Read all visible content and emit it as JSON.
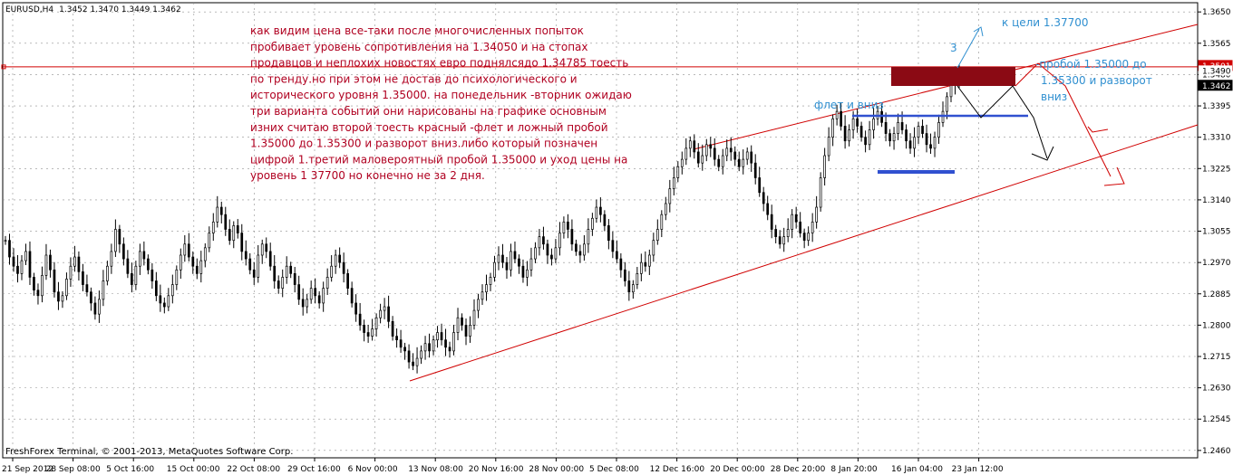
{
  "header": {
    "symbol": "EURUSD,H4",
    "ohlc": "1.3452 1.3470 1.3449 1.3462"
  },
  "footer": {
    "copyright": "FreshForex Terminal, © 2001-2013, MetaQuotes Software Corp."
  },
  "annotations": {
    "main_text": [
      "как видим цена все-таки после многочисленных попыток",
      "пробивает уровень сопротивления на 1.34050 и на стопах",
      "продавцов и неплохих новостях евро поднялсядо 1.34785 тоесть",
      "по тренду.но при этом не достав до психологического  и",
      "исторического уровня 1.35000. на понедельник -вторник ожидаю",
      "три варианта событий они нарисованы на графике основным",
      "изних считаю второй тоесть красный -флет и ложный пробой",
      "1.35000 до 1.35300 и разворот вниз.либо который позначен",
      "цифрой 1.третий маловероятный пробой 1.35000 и уход цены на",
      "уровень 1 37700 но конечно не за 2 дня."
    ],
    "target_label": "к цели 1.37700",
    "flat_label": "флет и вниз",
    "breakout_label": [
      "-пробой 1.35000 до",
      "1.35300 и разворот",
      "вниз"
    ],
    "number_three": "3"
  },
  "colors": {
    "candle": "#000000",
    "trend_line": "#d00000",
    "annotation_red": "#b00020",
    "annotation_blue": "#2f8fd0",
    "support_line": "#3050d0",
    "resistance_box": "#8b0a14",
    "grid": "#909090"
  },
  "chart_data": {
    "type": "candlestick",
    "symbol": "EURUSD",
    "timeframe": "H4",
    "y_ticks": [
      "1.3650",
      "1.3565",
      "1.3480",
      "1.3395",
      "1.3310",
      "1.3225",
      "1.3140",
      "1.3055",
      "1.2970",
      "1.2885",
      "1.2800",
      "1.2715",
      "1.2630",
      "1.2545",
      "1.2460"
    ],
    "ylim": [
      1.244,
      1.3675
    ],
    "x_ticks": [
      "21 Sep 2012",
      "28 Sep 08:00",
      "5 Oct 16:00",
      "15 Oct 00:00",
      "22 Oct 08:00",
      "29 Oct 16:00",
      "6 Nov 00:00",
      "13 Nov 08:00",
      "20 Nov 16:00",
      "28 Nov 00:00",
      "5 Dec 08:00",
      "12 Dec 16:00",
      "20 Dec 00:00",
      "28 Dec 20:00",
      "8 Jan 20:00",
      "16 Jan 04:00",
      "23 Jan 12:00"
    ],
    "price_marks": [
      {
        "label": "1.3501",
        "value": 1.3501,
        "style": "red"
      },
      {
        "label": "1.3490",
        "value": 1.349,
        "style": "plain"
      },
      {
        "label": "1.3462",
        "value": 1.3462,
        "style": "dark"
      }
    ],
    "horizontal_line": 1.3501,
    "closes": [
      1.303,
      1.2985,
      1.296,
      1.294,
      1.2975,
      1.3,
      1.293,
      1.2895,
      1.288,
      1.2935,
      1.299,
      1.295,
      1.289,
      1.2865,
      1.288,
      1.2925,
      1.296,
      1.2985,
      1.2945,
      1.291,
      1.289,
      1.286,
      1.283,
      1.287,
      1.292,
      1.296,
      1.3,
      1.306,
      1.302,
      1.298,
      1.294,
      1.291,
      1.296,
      1.3,
      1.298,
      1.295,
      1.292,
      1.288,
      1.286,
      1.285,
      1.288,
      1.291,
      1.295,
      1.299,
      1.302,
      1.2985,
      1.296,
      1.294,
      1.2975,
      1.301,
      1.305,
      1.308,
      1.312,
      1.31,
      1.306,
      1.303,
      1.307,
      1.305,
      1.3,
      1.298,
      1.295,
      1.293,
      1.299,
      1.302,
      1.3,
      1.296,
      1.292,
      1.29,
      1.293,
      1.296,
      1.294,
      1.291,
      1.287,
      1.285,
      1.287,
      1.29,
      1.288,
      1.286,
      1.29,
      1.293,
      1.296,
      1.299,
      1.297,
      1.294,
      1.29,
      1.286,
      1.283,
      1.28,
      1.278,
      1.277,
      1.279,
      1.282,
      1.284,
      1.285,
      1.281,
      1.277,
      1.276,
      1.274,
      1.273,
      1.27,
      1.269,
      1.271,
      1.273,
      1.275,
      1.273,
      1.276,
      1.278,
      1.276,
      1.274,
      1.273,
      1.278,
      1.282,
      1.28,
      1.277,
      1.28,
      1.284,
      1.287,
      1.289,
      1.291,
      1.293,
      1.297,
      1.299,
      1.297,
      1.295,
      1.3,
      1.298,
      1.296,
      1.293,
      1.295,
      1.298,
      1.301,
      1.304,
      1.302,
      1.299,
      1.298,
      1.301,
      1.305,
      1.308,
      1.306,
      1.302,
      1.3,
      1.299,
      1.302,
      1.306,
      1.309,
      1.312,
      1.31,
      1.307,
      1.303,
      1.3,
      1.298,
      1.295,
      1.292,
      1.289,
      1.291,
      1.294,
      1.297,
      1.296,
      1.299,
      1.303,
      1.306,
      1.31,
      1.313,
      1.317,
      1.32,
      1.323,
      1.325,
      1.328,
      1.33,
      1.327,
      1.324,
      1.326,
      1.329,
      1.328,
      1.325,
      1.323,
      1.326,
      1.328,
      1.327,
      1.325,
      1.323,
      1.325,
      1.327,
      1.324,
      1.32,
      1.316,
      1.313,
      1.31,
      1.306,
      1.304,
      1.302,
      1.304,
      1.306,
      1.31,
      1.308,
      1.305,
      1.303,
      1.305,
      1.308,
      1.312,
      1.32,
      1.326,
      1.331,
      1.336,
      1.338,
      1.334,
      1.33,
      1.333,
      1.336,
      1.334,
      1.331,
      1.329,
      1.333,
      1.336,
      1.338,
      1.335,
      1.332,
      1.33,
      1.332,
      1.335,
      1.333,
      1.33,
      1.328,
      1.331,
      1.334,
      1.332,
      1.329,
      1.328,
      1.331,
      1.335,
      1.338,
      1.342,
      1.345,
      1.3478,
      1.3462
    ]
  }
}
